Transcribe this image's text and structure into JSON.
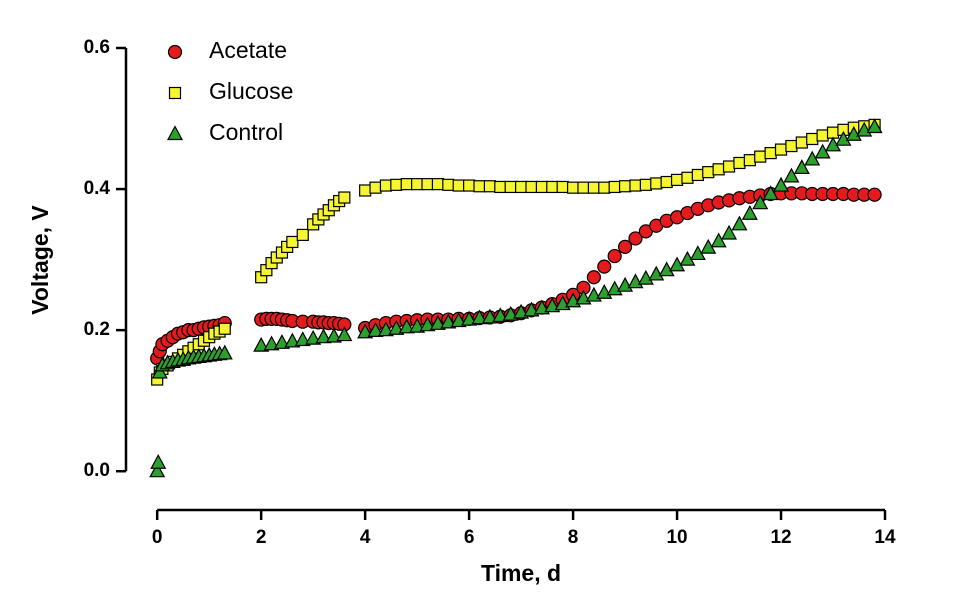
{
  "chart_data": {
    "type": "scatter",
    "x_label": "Time, d",
    "y_label": "Voltage, V",
    "xlim": [
      -0.6,
      14
    ],
    "ylim": [
      -0.055,
      0.6
    ],
    "xticks": [
      0,
      2,
      4,
      6,
      8,
      10,
      12,
      14
    ],
    "yticks": [
      {
        "value": 0,
        "label": "0.0"
      },
      0.2,
      0.4,
      0.6
    ],
    "legend": "top-left",
    "series": [
      {
        "name": "Acetate",
        "color": "#e41a1c",
        "marker": "circle",
        "x": [
          0,
          0.05,
          0.1,
          0.2,
          0.3,
          0.4,
          0.5,
          0.6,
          0.7,
          0.8,
          0.9,
          1.0,
          1.1,
          1.2,
          1.3,
          2.0,
          2.1,
          2.2,
          2.3,
          2.4,
          2.5,
          2.6,
          2.8,
          3.0,
          3.1,
          3.2,
          3.3,
          3.4,
          3.5,
          3.6,
          4.0,
          4.2,
          4.4,
          4.6,
          4.8,
          5.0,
          5.2,
          5.4,
          5.6,
          5.8,
          6.0,
          6.2,
          6.4,
          6.6,
          6.8,
          7.0,
          7.2,
          7.4,
          7.6,
          7.8,
          8.0,
          8.2,
          8.4,
          8.6,
          8.8,
          9.0,
          9.2,
          9.4,
          9.6,
          9.8,
          10.0,
          10.2,
          10.4,
          10.6,
          10.8,
          11.0,
          11.2,
          11.4,
          11.6,
          11.8,
          12.0,
          12.2,
          12.4,
          12.6,
          12.8,
          13.0,
          13.2,
          13.4,
          13.6,
          13.8
        ],
        "values": [
          0.16,
          0.17,
          0.18,
          0.185,
          0.19,
          0.195,
          0.197,
          0.2,
          0.2,
          0.202,
          0.204,
          0.205,
          0.206,
          0.207,
          0.21,
          0.215,
          0.216,
          0.216,
          0.216,
          0.215,
          0.214,
          0.213,
          0.212,
          0.212,
          0.211,
          0.211,
          0.21,
          0.21,
          0.209,
          0.208,
          0.203,
          0.207,
          0.21,
          0.212,
          0.213,
          0.214,
          0.215,
          0.215,
          0.215,
          0.216,
          0.216,
          0.217,
          0.218,
          0.219,
          0.221,
          0.224,
          0.228,
          0.232,
          0.237,
          0.243,
          0.25,
          0.26,
          0.275,
          0.29,
          0.305,
          0.318,
          0.33,
          0.34,
          0.348,
          0.355,
          0.36,
          0.366,
          0.372,
          0.377,
          0.381,
          0.384,
          0.387,
          0.389,
          0.391,
          0.393,
          0.394,
          0.394,
          0.394,
          0.393,
          0.393,
          0.393,
          0.393,
          0.392,
          0.392,
          0.392
        ]
      },
      {
        "name": "Glucose",
        "color": "#f5f532",
        "marker": "square",
        "x": [
          0,
          0.05,
          0.1,
          0.2,
          0.3,
          0.4,
          0.5,
          0.6,
          0.7,
          0.8,
          0.9,
          1.0,
          1.1,
          1.2,
          1.3,
          2.0,
          2.1,
          2.2,
          2.3,
          2.4,
          2.5,
          2.6,
          2.8,
          3.0,
          3.1,
          3.2,
          3.3,
          3.4,
          3.5,
          3.6,
          4.0,
          4.2,
          4.4,
          4.6,
          4.8,
          5.0,
          5.2,
          5.4,
          5.6,
          5.8,
          6.0,
          6.2,
          6.4,
          6.6,
          6.8,
          7.0,
          7.2,
          7.4,
          7.6,
          7.8,
          8.0,
          8.2,
          8.4,
          8.6,
          8.8,
          9.0,
          9.2,
          9.4,
          9.6,
          9.8,
          10.0,
          10.2,
          10.4,
          10.6,
          10.8,
          11.0,
          11.2,
          11.4,
          11.6,
          11.8,
          12.0,
          12.2,
          12.4,
          12.6,
          12.8,
          13.0,
          13.2,
          13.4,
          13.6,
          13.8
        ],
        "values": [
          0.13,
          0.14,
          0.145,
          0.15,
          0.155,
          0.16,
          0.165,
          0.17,
          0.175,
          0.18,
          0.185,
          0.19,
          0.195,
          0.198,
          0.202,
          0.275,
          0.285,
          0.295,
          0.303,
          0.31,
          0.318,
          0.325,
          0.335,
          0.35,
          0.357,
          0.364,
          0.37,
          0.377,
          0.383,
          0.388,
          0.398,
          0.402,
          0.405,
          0.406,
          0.407,
          0.407,
          0.407,
          0.407,
          0.406,
          0.405,
          0.405,
          0.404,
          0.404,
          0.403,
          0.403,
          0.403,
          0.403,
          0.403,
          0.403,
          0.403,
          0.402,
          0.402,
          0.402,
          0.402,
          0.403,
          0.404,
          0.405,
          0.406,
          0.408,
          0.41,
          0.413,
          0.416,
          0.42,
          0.424,
          0.428,
          0.432,
          0.437,
          0.441,
          0.446,
          0.451,
          0.456,
          0.461,
          0.466,
          0.471,
          0.476,
          0.48,
          0.484,
          0.487,
          0.489,
          0.491
        ]
      },
      {
        "name": "Control",
        "color": "#2ca02c",
        "marker": "triangle",
        "x": [
          0,
          0.02,
          0.05,
          0.1,
          0.2,
          0.3,
          0.4,
          0.5,
          0.6,
          0.7,
          0.8,
          0.9,
          1.0,
          1.1,
          1.2,
          1.3,
          2.0,
          2.2,
          2.4,
          2.6,
          2.8,
          3.0,
          3.2,
          3.4,
          3.6,
          4.0,
          4.2,
          4.4,
          4.6,
          4.8,
          5.0,
          5.2,
          5.4,
          5.6,
          5.8,
          6.0,
          6.2,
          6.4,
          6.6,
          6.8,
          7.0,
          7.2,
          7.4,
          7.6,
          7.8,
          8.0,
          8.2,
          8.4,
          8.6,
          8.8,
          9.0,
          9.2,
          9.4,
          9.6,
          9.8,
          10.0,
          10.2,
          10.4,
          10.6,
          10.8,
          11.0,
          11.2,
          11.4,
          11.6,
          11.8,
          12.0,
          12.2,
          12.4,
          12.6,
          12.8,
          13.0,
          13.2,
          13.4,
          13.6,
          13.8
        ],
        "values": [
          0.0,
          0.012,
          0.14,
          0.15,
          0.153,
          0.155,
          0.157,
          0.158,
          0.16,
          0.161,
          0.162,
          0.163,
          0.164,
          0.165,
          0.166,
          0.167,
          0.178,
          0.18,
          0.182,
          0.184,
          0.186,
          0.188,
          0.19,
          0.191,
          0.193,
          0.197,
          0.199,
          0.2,
          0.202,
          0.204,
          0.205,
          0.207,
          0.209,
          0.211,
          0.213,
          0.215,
          0.217,
          0.218,
          0.22,
          0.222,
          0.225,
          0.228,
          0.231,
          0.234,
          0.237,
          0.241,
          0.245,
          0.249,
          0.253,
          0.258,
          0.263,
          0.268,
          0.273,
          0.279,
          0.285,
          0.292,
          0.3,
          0.308,
          0.317,
          0.326,
          0.337,
          0.35,
          0.365,
          0.38,
          0.393,
          0.405,
          0.418,
          0.43,
          0.442,
          0.452,
          0.462,
          0.47,
          0.477,
          0.483,
          0.488
        ]
      }
    ]
  }
}
